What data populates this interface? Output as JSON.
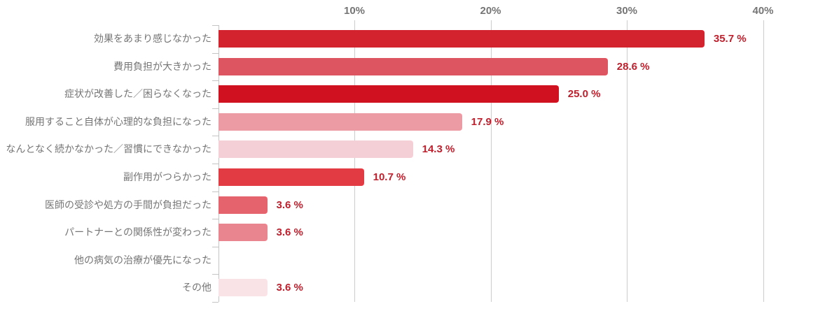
{
  "chart_data": {
    "type": "bar",
    "orientation": "horizontal",
    "title": "",
    "categories": [
      "効果をあまり感じなかった",
      "費用負担が大きかった",
      "症状が改善した／困らなくなった",
      "服用すること自体が心理的な負担になった",
      "なんとなく続かなかった／習慣にできなかった",
      "副作用がつらかった",
      "医師の受診や処方の手間が負担だった",
      "パートナーとの関係性が変わった",
      "他の病気の治療が優先になった",
      "その他"
    ],
    "values": [
      35.7,
      28.6,
      25.0,
      17.9,
      14.3,
      10.7,
      3.6,
      3.6,
      0,
      3.6
    ],
    "value_labels": [
      "35.7 %",
      "28.6 %",
      "25.0 %",
      "17.9 %",
      "14.3 %",
      "10.7 %",
      "3.6 %",
      "3.6 %",
      "",
      "3.6 %"
    ],
    "bar_colors": [
      "#d2232f",
      "#dc5560",
      "#d0111f",
      "#ec9ba4",
      "#f5cfd6",
      "#e23b44",
      "#e4636c",
      "#e8858e",
      null,
      "#fae3e6"
    ],
    "xlabel": "",
    "ylabel": "",
    "x_axis": {
      "position": "top",
      "tick_labels": [
        "10%",
        "20%",
        "30%",
        "40%"
      ],
      "tick_values": [
        10,
        20,
        30,
        40
      ],
      "xlim": [
        0,
        45
      ]
    },
    "grid": true,
    "legend": false,
    "colors": {
      "value_label": "#be202d",
      "category_label": "#757575",
      "axis_tick_label": "#757575",
      "gridline": "#cccccc",
      "axis_line": "#c4c4c4",
      "background": "#ffffff"
    }
  }
}
